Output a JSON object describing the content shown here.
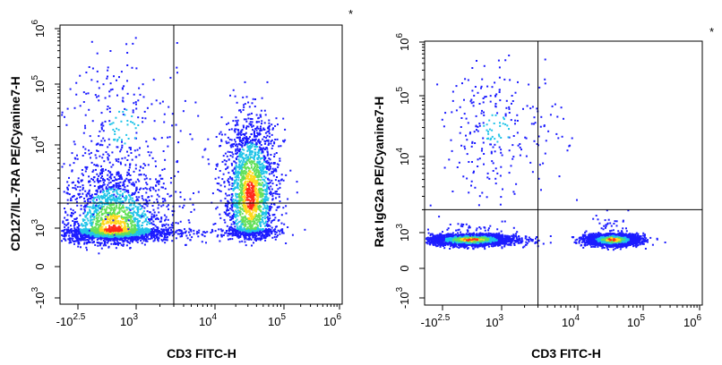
{
  "chart_data": [
    {
      "type": "scatter",
      "style": "density-dot-plot",
      "xlabel": "CD3 FITC-H",
      "ylabel": "CD127/IL-7RA PE/Cyanine7-H",
      "x_scale": "biexponential",
      "y_scale": "biexponential",
      "x_ticks": [
        {
          "base": "-10",
          "exp": "2.5"
        },
        {
          "base": "10",
          "exp": "3"
        },
        {
          "base": "10",
          "exp": "4"
        },
        {
          "base": "10",
          "exp": "5"
        },
        {
          "base": "10",
          "exp": "6"
        }
      ],
      "y_ticks": [
        {
          "base": "-10",
          "exp": "3"
        },
        {
          "base": "0",
          "exp": ""
        },
        {
          "base": "10",
          "exp": "3"
        },
        {
          "base": "10",
          "exp": "4"
        },
        {
          "base": "10",
          "exp": "5"
        },
        {
          "base": "10",
          "exp": "6"
        }
      ],
      "gate_x": 3000,
      "gate_y": 2000,
      "corner_mark": "*",
      "populations": [
        {
          "x_center": 400,
          "y_center": 800,
          "x_spread_decades": 0.45,
          "y_spread_decades": 0.45,
          "share": 0.55,
          "peak_density": "high"
        },
        {
          "x_center": 32000,
          "y_center": 2500,
          "x_spread_decades": 0.2,
          "y_spread_decades": 0.5,
          "share": 0.4,
          "peak_density": "high"
        },
        {
          "x_center": 600,
          "y_center": 20000,
          "x_spread_decades": 0.5,
          "y_spread_decades": 0.6,
          "share": 0.05,
          "peak_density": "low"
        }
      ],
      "colors": {
        "low": "#1c1cff",
        "mid": "#21c4e8",
        "mid_high": "#64e05a",
        "high_mid": "#ffd91e",
        "high": "#ff2a1a"
      }
    },
    {
      "type": "scatter",
      "style": "density-dot-plot",
      "xlabel": "CD3 FITC-H",
      "ylabel": "Rat IgG2a PE/Cyanine7-H",
      "x_scale": "biexponential",
      "y_scale": "biexponential",
      "x_ticks": [
        {
          "base": "-10",
          "exp": "2.5"
        },
        {
          "base": "10",
          "exp": "3"
        },
        {
          "base": "10",
          "exp": "4"
        },
        {
          "base": "10",
          "exp": "5"
        },
        {
          "base": "10",
          "exp": "6"
        }
      ],
      "y_ticks": [
        {
          "base": "-10",
          "exp": "3"
        },
        {
          "base": "0",
          "exp": ""
        },
        {
          "base": "10",
          "exp": "3"
        },
        {
          "base": "10",
          "exp": "4"
        },
        {
          "base": "10",
          "exp": "5"
        },
        {
          "base": "10",
          "exp": "6"
        }
      ],
      "gate_x": 3000,
      "gate_y": 2000,
      "corner_mark": "*",
      "populations": [
        {
          "x_center": 300,
          "y_center": 300,
          "x_spread_decades": 0.35,
          "y_spread_decades": 0.25,
          "share": 0.5,
          "peak_density": "high"
        },
        {
          "x_center": 33000,
          "y_center": 300,
          "x_spread_decades": 0.2,
          "y_spread_decades": 0.25,
          "share": 0.45,
          "peak_density": "high"
        },
        {
          "x_center": 800,
          "y_center": 30000,
          "x_spread_decades": 0.45,
          "y_spread_decades": 0.5,
          "share": 0.05,
          "peak_density": "low"
        }
      ],
      "colors": {
        "low": "#1c1cff",
        "mid": "#21c4e8",
        "mid_high": "#64e05a",
        "high_mid": "#ffd91e",
        "high": "#ff2a1a"
      }
    }
  ]
}
